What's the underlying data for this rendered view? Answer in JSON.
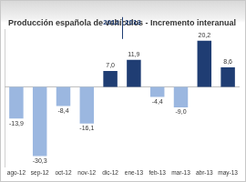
{
  "chart_data": {
    "type": "bar",
    "title": "Producción española de vehículos - Incremento interanual",
    "categories": [
      "ago-12",
      "sep-12",
      "oct-12",
      "nov-12",
      "dic-12",
      "ene-13",
      "feb-13",
      "mar-13",
      "abr-13",
      "may-13"
    ],
    "values": [
      -13.9,
      -30.3,
      -8.4,
      -16.1,
      7.0,
      11.9,
      -4.4,
      -9.0,
      20.2,
      8.6
    ],
    "value_labels": [
      "-13,9",
      "-30,3",
      "-8,4",
      "-16,1",
      "7,0",
      "11,9",
      "-4,4",
      "-9,0",
      "20,2",
      "8,6"
    ],
    "colors": [
      "#9bb7e0",
      "#9bb7e0",
      "#9bb7e0",
      "#9bb7e0",
      "#1f3d73",
      "#1f3d73",
      "#9bb7e0",
      "#9bb7e0",
      "#1f3d73",
      "#1f3d73"
    ],
    "ylim": [
      -35,
      25
    ],
    "annotations": [
      {
        "text": "2012",
        "from": "ago-12",
        "to": "dic-12"
      },
      {
        "text": "2013",
        "from": "ene-13",
        "to": "may-13"
      }
    ],
    "data_labels": true,
    "grid": false,
    "tick_labels": "x"
  }
}
